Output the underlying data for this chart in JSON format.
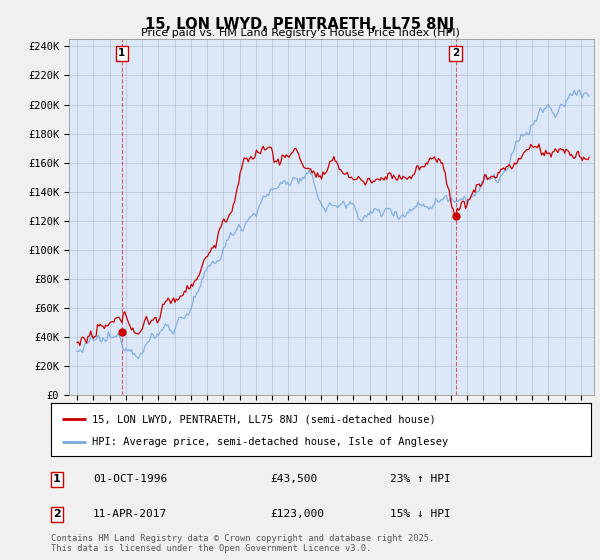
{
  "title": "15, LON LWYD, PENTRAETH, LL75 8NJ",
  "subtitle": "Price paid vs. HM Land Registry's House Price Index (HPI)",
  "ylabel_ticks": [
    "£0",
    "£20K",
    "£40K",
    "£60K",
    "£80K",
    "£100K",
    "£120K",
    "£140K",
    "£160K",
    "£180K",
    "£200K",
    "£220K",
    "£240K"
  ],
  "ytick_values": [
    0,
    20000,
    40000,
    60000,
    80000,
    100000,
    120000,
    140000,
    160000,
    180000,
    200000,
    220000,
    240000
  ],
  "ylim": [
    0,
    245000
  ],
  "xmin": 1993.5,
  "xmax": 2025.8,
  "legend_line1": "15, LON LWYD, PENTRAETH, LL75 8NJ (semi-detached house)",
  "legend_line2": "HPI: Average price, semi-detached house, Isle of Anglesey",
  "sale1_label": "1",
  "sale1_date": "01-OCT-1996",
  "sale1_price": "£43,500",
  "sale1_hpi": "23% ↑ HPI",
  "sale1_x": 1996.75,
  "sale1_y": 43500,
  "sale2_label": "2",
  "sale2_date": "11-APR-2017",
  "sale2_price": "£123,000",
  "sale2_hpi": "15% ↓ HPI",
  "sale2_x": 2017.28,
  "sale2_y": 123000,
  "red_color": "#cc0000",
  "blue_color": "#7aaadd",
  "footer": "Contains HM Land Registry data © Crown copyright and database right 2025.\nThis data is licensed under the Open Government Licence v3.0.",
  "fig_bg": "#f0f0f0",
  "plot_bg": "#dce8f8",
  "grid_color": "#aabbcc"
}
